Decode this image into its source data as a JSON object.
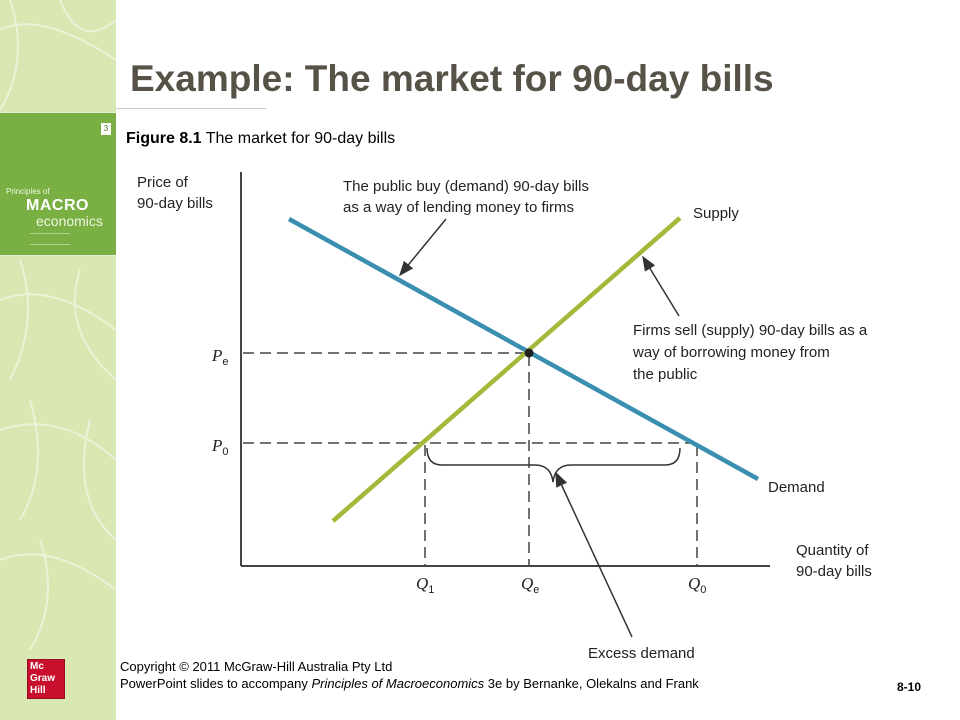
{
  "slide": {
    "title": "Example: The market for 90-day bills",
    "figure_label": "Figure 8.1",
    "figure_caption": "The market for 90-day bills",
    "slide_number": "8-10"
  },
  "book": {
    "line1": "Principles of",
    "line2": "MACRO",
    "line3": "economics",
    "edition_badge": "3"
  },
  "logo": {
    "lines": [
      "Mc",
      "Graw",
      "Hill"
    ]
  },
  "footer": {
    "line1": "Copyright © 2011 McGraw-Hill Australia Pty Ltd",
    "line2_prefix": "PowerPoint slides to accompany ",
    "line2_italic": "Principles of Macroeconomics",
    "line2_suffix": " 3e by  Bernanke, Olekalns and Frank"
  },
  "diagram": {
    "y_axis_label": [
      "Price of",
      "90-day bills"
    ],
    "x_axis_label": [
      "Quantity of",
      "90-day bills"
    ],
    "supply_label": "Supply",
    "demand_label": "Demand",
    "price_labels": [
      {
        "main": "P",
        "sub": "e"
      },
      {
        "main": "P",
        "sub": "0"
      }
    ],
    "quantity_labels": [
      {
        "main": "Q",
        "sub": "1"
      },
      {
        "main": "Q",
        "sub": "e"
      },
      {
        "main": "Q",
        "sub": "0"
      }
    ],
    "demand_note": [
      "The public buy (demand) 90-day bills",
      "as a way of lending money to firms"
    ],
    "supply_note": [
      "Firms sell (supply) 90-day bills as a",
      "way of borrowing money from",
      "the public"
    ],
    "excess_label": "Excess demand",
    "colors": {
      "demand": "#3a8fb0",
      "supply": "#a6b83a",
      "axis": "#444444"
    }
  }
}
